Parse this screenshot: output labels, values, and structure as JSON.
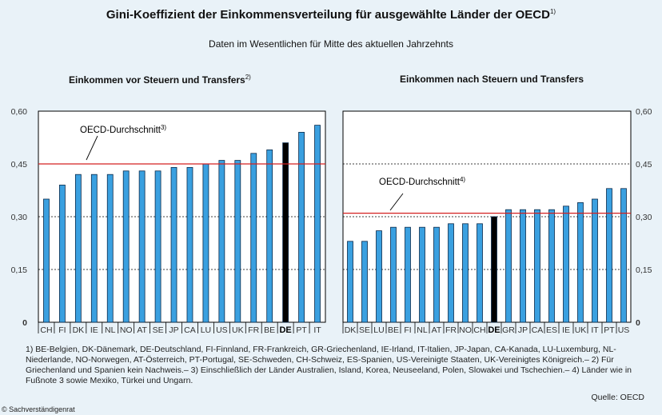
{
  "title": "Gini-Koeffizient der Einkommensverteilung für ausgewählte Länder der OECD",
  "title_sup": "1)",
  "subtitle": "Daten im Wesentlichen für Mitte des aktuellen Jahrzehnts",
  "colors": {
    "bar": "#3aa0e0",
    "highlight": "#000000",
    "average_line": "#d42020",
    "background": "#e9f2f8"
  },
  "chart_data": [
    {
      "type": "bar",
      "title": "Einkommen vor Steuern und Transfers",
      "title_sup": "2)",
      "ylim": [
        0,
        0.6
      ],
      "yticks": [
        "0",
        "0,15",
        "0,30",
        "0,45",
        "0,60"
      ],
      "ytick_values": [
        0,
        0.15,
        0.3,
        0.45,
        0.6
      ],
      "y_axis_side": "left",
      "grid": true,
      "categories": [
        "CH",
        "FI",
        "DK",
        "IE",
        "NL",
        "NO",
        "AT",
        "SE",
        "JP",
        "CA",
        "LU",
        "US",
        "UK",
        "FR",
        "BE",
        "DE",
        "PT",
        "IT"
      ],
      "values": [
        0.35,
        0.39,
        0.42,
        0.42,
        0.42,
        0.43,
        0.43,
        0.43,
        0.44,
        0.44,
        0.45,
        0.46,
        0.46,
        0.48,
        0.49,
        0.51,
        0.54,
        0.56
      ],
      "highlight": "DE",
      "average": {
        "label": "OECD-Durchschnitt",
        "sup": "3)",
        "value": 0.45
      }
    },
    {
      "type": "bar",
      "title": "Einkommen nach Steuern und Transfers",
      "title_sup": "",
      "ylim": [
        0,
        0.6
      ],
      "yticks": [
        "0",
        "0,15",
        "0,30",
        "0,45",
        "0,60"
      ],
      "ytick_values": [
        0,
        0.15,
        0.3,
        0.45,
        0.6
      ],
      "y_axis_side": "right",
      "grid": true,
      "categories": [
        "DK",
        "SE",
        "LU",
        "BE",
        "FI",
        "NL",
        "AT",
        "FR",
        "NO",
        "CH",
        "DE",
        "GR",
        "JP",
        "CA",
        "ES",
        "IE",
        "UK",
        "IT",
        "PT",
        "US"
      ],
      "values": [
        0.23,
        0.23,
        0.26,
        0.27,
        0.27,
        0.27,
        0.27,
        0.28,
        0.28,
        0.28,
        0.3,
        0.32,
        0.32,
        0.32,
        0.32,
        0.33,
        0.34,
        0.35,
        0.38,
        0.38
      ],
      "highlight": "DE",
      "average": {
        "label": "OECD-Durchschnitt",
        "sup": "4)",
        "value": 0.31
      }
    }
  ],
  "footnote": "1) BE-Belgien, DK-Dänemark, DE-Deutschland, FI-Finnland, FR-Frankreich, GR-Griechenland, IE-Irland, IT-Italien, JP-Japan, CA-Kanada, LU-Luxemburg, NL-Niederlande, NO-Norwegen, AT-Österreich, PT-Portugal, SE-Schweden, CH-Schweiz, ES-Spanien, US-Vereinigte Staaten, UK-Vereinigtes Königreich.– 2) Für Griechenland und Spanien kein Nachweis.– 3) Einschließlich der Länder Australien, Island, Korea, Neuseeland, Polen, Slowakei und Tschechien.– 4) Länder wie in Fußnote 3 sowie Mexiko, Türkei und Ungarn.",
  "source": "Quelle: OECD",
  "copyright": "© Sachverständigenrat"
}
